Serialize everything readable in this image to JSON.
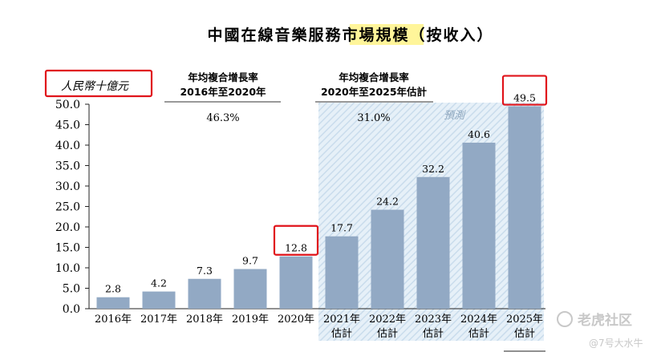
{
  "chart_data": {
    "type": "bar",
    "title_prefix": "中國在線音樂服務",
    "title_highlight": "市場規模",
    "title_suffix": "（按收入）",
    "ylabel": "人民幣十億元",
    "ylim": [
      0,
      50
    ],
    "yticks": [
      "0.0",
      "5.0",
      "10.0",
      "15.0",
      "20.0",
      "25.0",
      "30.0",
      "35.0",
      "40.0",
      "45.0",
      "50.0"
    ],
    "categories": [
      {
        "line1": "2016年",
        "line2": ""
      },
      {
        "line1": "2017年",
        "line2": ""
      },
      {
        "line1": "2018年",
        "line2": ""
      },
      {
        "line1": "2019年",
        "line2": ""
      },
      {
        "line1": "2020年",
        "line2": ""
      },
      {
        "line1": "2021年",
        "line2": "估計"
      },
      {
        "line1": "2022年",
        "line2": "估計"
      },
      {
        "line1": "2023年",
        "line2": "估計"
      },
      {
        "line1": "2024年",
        "line2": "估計"
      },
      {
        "line1": "2025年",
        "line2": "估計"
      }
    ],
    "values": [
      2.8,
      4.2,
      7.3,
      9.7,
      12.8,
      17.7,
      24.2,
      32.2,
      40.6,
      49.5
    ],
    "value_labels": [
      "2.8",
      "4.2",
      "7.3",
      "9.7",
      "12.8",
      "17.7",
      "24.2",
      "32.2",
      "40.6",
      "49.5"
    ],
    "forecast_start_index": 5,
    "forecast_label": "預測",
    "cagr": [
      {
        "head1": "年均複合增長率",
        "head2": "2016年至2020年",
        "value": "46.3%"
      },
      {
        "head1": "年均複合增長率",
        "head2": "2020年至2025年估計",
        "value": "31.0%"
      }
    ],
    "highlighted_indices": [
      4,
      9
    ],
    "colors": {
      "bar": "#92a9c4",
      "highlight": "#fff59a",
      "annotation_box": "#e0141b",
      "forecast_stripe": "#c9dcec"
    }
  },
  "watermark": {
    "brand": "老虎社区",
    "user": "@7号大水牛"
  }
}
